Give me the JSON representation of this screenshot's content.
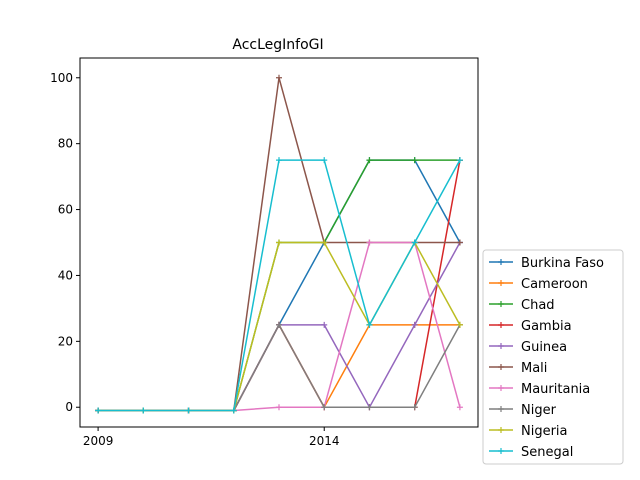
{
  "chart_data": {
    "type": "line",
    "title": "AccLegInfoGI",
    "xlabel": "",
    "ylabel": "",
    "x": [
      2009,
      2010,
      2011,
      2012,
      2013,
      2014,
      2015,
      2016,
      2017
    ],
    "xticks": [
      2009,
      2014
    ],
    "xtick_labels": [
      "2009",
      "2014"
    ],
    "yticks": [
      0,
      20,
      40,
      60,
      80,
      100
    ],
    "ytick_labels": [
      "0",
      "20",
      "40",
      "60",
      "80",
      "100"
    ],
    "xlim": [
      2008.6,
      2017.4
    ],
    "ylim": [
      -6,
      106
    ],
    "grid": false,
    "legend_position": "outside-right-bottom",
    "marker": "+",
    "series": [
      {
        "name": "Burkina Faso",
        "color": "#1f77b4",
        "values": [
          -1,
          -1,
          -1,
          -1,
          25,
          50,
          75,
          75,
          50
        ]
      },
      {
        "name": "Cameroon",
        "color": "#ff7f0e",
        "values": [
          -1,
          -1,
          -1,
          -1,
          25,
          0,
          25,
          25,
          25
        ]
      },
      {
        "name": "Chad",
        "color": "#2ca02c",
        "values": [
          -1,
          -1,
          -1,
          -1,
          50,
          50,
          75,
          75,
          75
        ]
      },
      {
        "name": "Gambia",
        "color": "#d62728",
        "values": [
          -1,
          -1,
          -1,
          -1,
          25,
          0,
          0,
          0,
          75
        ]
      },
      {
        "name": "Guinea",
        "color": "#9467bd",
        "values": [
          -1,
          -1,
          -1,
          -1,
          25,
          25,
          0,
          25,
          50
        ]
      },
      {
        "name": "Mali",
        "color": "#8c564b",
        "values": [
          -1,
          -1,
          -1,
          -1,
          100,
          50,
          50,
          50,
          50
        ]
      },
      {
        "name": "Mauritania",
        "color": "#e377c2",
        "values": [
          -1,
          -1,
          -1,
          -1,
          0,
          0,
          50,
          50,
          0
        ]
      },
      {
        "name": "Niger",
        "color": "#7f7f7f",
        "values": [
          -1,
          -1,
          -1,
          -1,
          25,
          0,
          0,
          0,
          25
        ]
      },
      {
        "name": "Nigeria",
        "color": "#bcbd22",
        "values": [
          -1,
          -1,
          -1,
          -1,
          50,
          50,
          25,
          50,
          25
        ]
      },
      {
        "name": "Senegal",
        "color": "#17becf",
        "values": [
          -1,
          -1,
          -1,
          -1,
          75,
          75,
          25,
          50,
          75
        ]
      }
    ]
  }
}
